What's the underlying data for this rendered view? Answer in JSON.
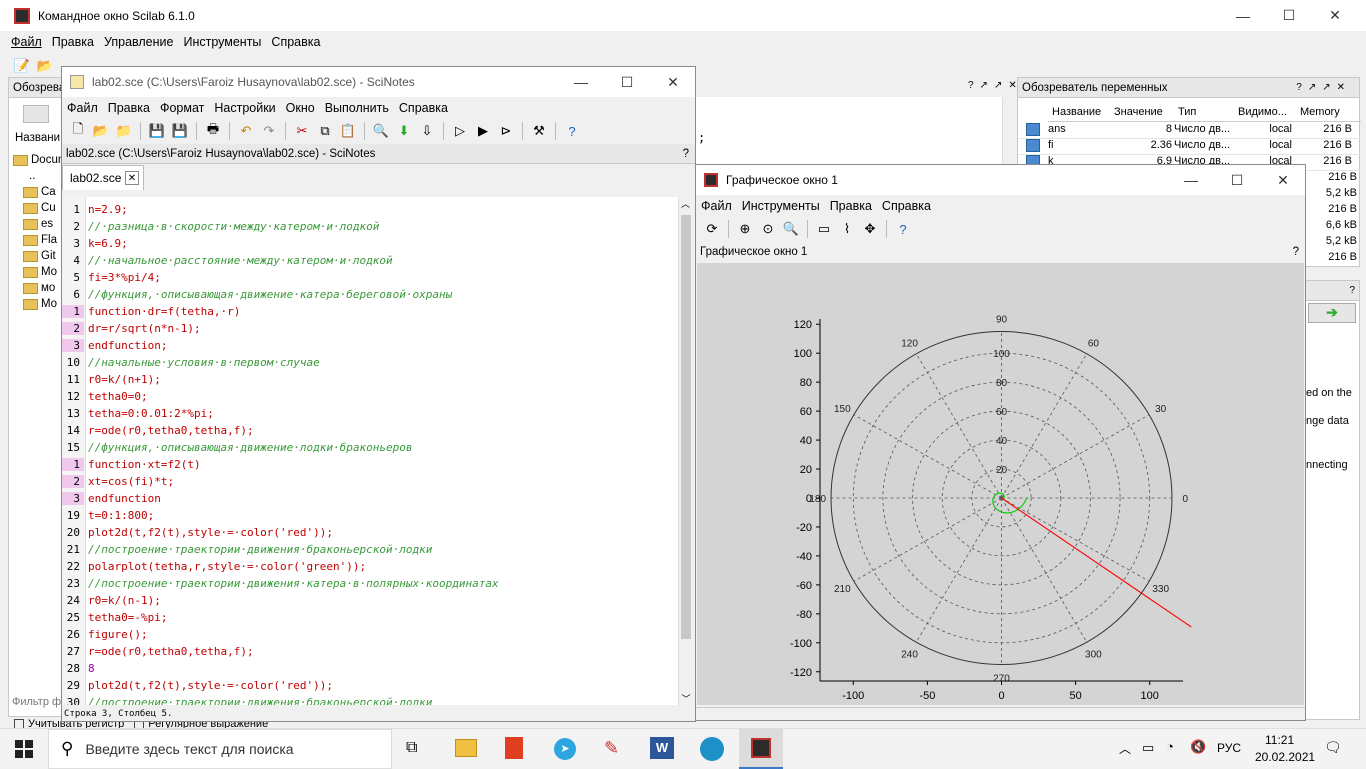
{
  "console": {
    "title": "Командное окно Scilab 6.1.0",
    "menu": [
      "Файл",
      "Правка",
      "Управление",
      "Инструменты",
      "Справка"
    ],
    "file_browser_title": "Обозрева",
    "file_browser_col": "Названи",
    "file_items": [
      "Docum",
      "..",
      "Ca",
      "Cu",
      "es",
      "Fla",
      "Git",
      "Mo",
      "мо",
      "Mo"
    ],
    "filter_label": "Фильтр ф",
    "case_checkbox": "Учитывать регистр",
    "regex_checkbox": "Регулярное выражение",
    "console_fragment": ";",
    "news_fragments": [
      "ed on the",
      "nge data",
      "nnecting"
    ]
  },
  "scinotes": {
    "window_title": "lab02.sce (C:\\Users\\Faroiz Husaynova\\lab02.sce) - SciNotes",
    "menu": [
      "Файл",
      "Правка",
      "Формат",
      "Настройки",
      "Окно",
      "Выполнить",
      "Справка"
    ],
    "doc_header": "lab02.sce (C:\\Users\\Faroiz Husaynova\\lab02.sce) - SciNotes",
    "tab_label": "lab02.sce",
    "status": "Строка 3, Столбец 5.",
    "lines": [
      {
        "n": "1",
        "mark": false,
        "text": "n=2.9;",
        "cls": "c-red"
      },
      {
        "n": "2",
        "mark": false,
        "text": "//·разница·в·скорости·между·катером·и·лодкой",
        "cls": "c-cmt"
      },
      {
        "n": "3",
        "mark": false,
        "text": "k=6.9;",
        "cls": "c-red"
      },
      {
        "n": "4",
        "mark": false,
        "text": "//·начальное·расстояние·между·катером·и·лодкой",
        "cls": "c-cmt"
      },
      {
        "n": "5",
        "mark": false,
        "text": "fi=3*%pi/4;",
        "cls": "c-red"
      },
      {
        "n": "6",
        "mark": false,
        "text": "//функция,·описывающая·движение·катера·береговой·охраны",
        "cls": "c-cmt"
      },
      {
        "n": "1",
        "mark": true,
        "text": "function·dr=f(tetha,·r)",
        "cls": "c-red"
      },
      {
        "n": "2",
        "mark": true,
        "text": "dr=r/sqrt(n*n-1);",
        "cls": "c-red"
      },
      {
        "n": "3",
        "mark": true,
        "text": "endfunction;",
        "cls": "c-red"
      },
      {
        "n": "10",
        "mark": false,
        "text": "//начальные·условия·в·первом·случае",
        "cls": "c-cmt"
      },
      {
        "n": "11",
        "mark": false,
        "text": "r0=k/(n+1);",
        "cls": "c-red"
      },
      {
        "n": "12",
        "mark": false,
        "text": "tetha0=0;",
        "cls": "c-red"
      },
      {
        "n": "13",
        "mark": false,
        "text": "tetha=0:0.01:2*%pi;",
        "cls": "c-red"
      },
      {
        "n": "14",
        "mark": false,
        "text": "r=ode(r0,tetha0,tetha,f);",
        "cls": "c-red"
      },
      {
        "n": "15",
        "mark": false,
        "text": "//функция,·описывающая·движение·лодки·браконьеров",
        "cls": "c-cmt"
      },
      {
        "n": "1",
        "mark": true,
        "text": "function·xt=f2(t)",
        "cls": "c-red"
      },
      {
        "n": "2",
        "mark": true,
        "text": "xt=cos(fi)*t;",
        "cls": "c-red"
      },
      {
        "n": "3",
        "mark": true,
        "text": "endfunction",
        "cls": "c-red"
      },
      {
        "n": "19",
        "mark": false,
        "text": "t=0:1:800;",
        "cls": "c-red"
      },
      {
        "n": "20",
        "mark": false,
        "text": "plot2d(t,f2(t),style·=·color('red'));",
        "cls": "c-red"
      },
      {
        "n": "21",
        "mark": false,
        "text": "//построение·траектории·движения·браконьерской·лодки",
        "cls": "c-cmt"
      },
      {
        "n": "22",
        "mark": false,
        "text": "polarplot(tetha,r,style·=·color('green'));",
        "cls": "c-red"
      },
      {
        "n": "23",
        "mark": false,
        "text": "//построение·траектории·движения·катера·в·полярных·координатах",
        "cls": "c-cmt"
      },
      {
        "n": "24",
        "mark": false,
        "text": "r0=k/(n-1);",
        "cls": "c-red"
      },
      {
        "n": "25",
        "mark": false,
        "text": "tetha0=-%pi;",
        "cls": "c-red"
      },
      {
        "n": "26",
        "mark": false,
        "text": "figure();",
        "cls": "c-red"
      },
      {
        "n": "27",
        "mark": false,
        "text": "r=ode(r0,tetha0,tetha,f);",
        "cls": "c-red"
      },
      {
        "n": "28",
        "mark": false,
        "text": "8",
        "cls": "c-kw"
      },
      {
        "n": "29",
        "mark": false,
        "text": "plot2d(t,f2(t),style·=·color('red'));",
        "cls": "c-red"
      },
      {
        "n": "30",
        "mark": false,
        "text": "//построение·траектории·движения·браконьерской·лодки",
        "cls": "c-cmt"
      }
    ]
  },
  "graphic": {
    "window_title": "Графическое окно 1",
    "menu": [
      "Файл",
      "Инструменты",
      "Правка",
      "Справка"
    ],
    "doc_header": "Графическое окно 1"
  },
  "chart_data": {
    "type": "line",
    "title": "",
    "xlabel": "",
    "ylabel": "",
    "xlim": [
      -120,
      120
    ],
    "ylim": [
      -120,
      120
    ],
    "x_ticks": [
      "-100",
      "-50",
      "0",
      "50",
      "100"
    ],
    "y_ticks": [
      "120",
      "100",
      "80",
      "60",
      "40",
      "20",
      "0",
      "-20",
      "-40",
      "-60",
      "-80",
      "-100",
      "-120"
    ],
    "polar_angle_labels": [
      "0",
      "30",
      "60",
      "90",
      "120",
      "150",
      "180",
      "210",
      "240",
      "270",
      "300",
      "330"
    ],
    "polar_radius_labels": [
      "100",
      "80",
      "60",
      "40",
      "20"
    ],
    "series": [
      {
        "color": "#00cc00",
        "r0": 1.7692,
        "k_exp": 0.3601,
        "theta_start": 0,
        "theta_end": 6.2832
      },
      {
        "color": "#ff0000",
        "x": [
          0,
          128
        ],
        "y": [
          0,
          -89
        ]
      }
    ]
  },
  "varbrowser": {
    "title": "Обозреватель переменных",
    "columns": [
      "Название",
      "Значение",
      "Тип",
      "Видимо...",
      "Memory"
    ],
    "rows": [
      {
        "name": "ans",
        "value": "8",
        "type": "Число дв...",
        "vis": "local",
        "mem": "216 B"
      },
      {
        "name": "fi",
        "value": "2.36",
        "type": "Число дв...",
        "vis": "local",
        "mem": "216 B"
      },
      {
        "name": "k",
        "value": "6.9",
        "type": "Число дв...",
        "vis": "local",
        "mem": "216 B"
      }
    ],
    "extra_mem": [
      "216 B",
      "5,2 kB",
      "216 B",
      "6,6 kB",
      "5,2 kB",
      "216 B"
    ]
  },
  "taskbar": {
    "search_placeholder": "Введите здесь текст для поиска",
    "lang": "РУС",
    "time": "11:21",
    "date": "20.02.2021"
  }
}
